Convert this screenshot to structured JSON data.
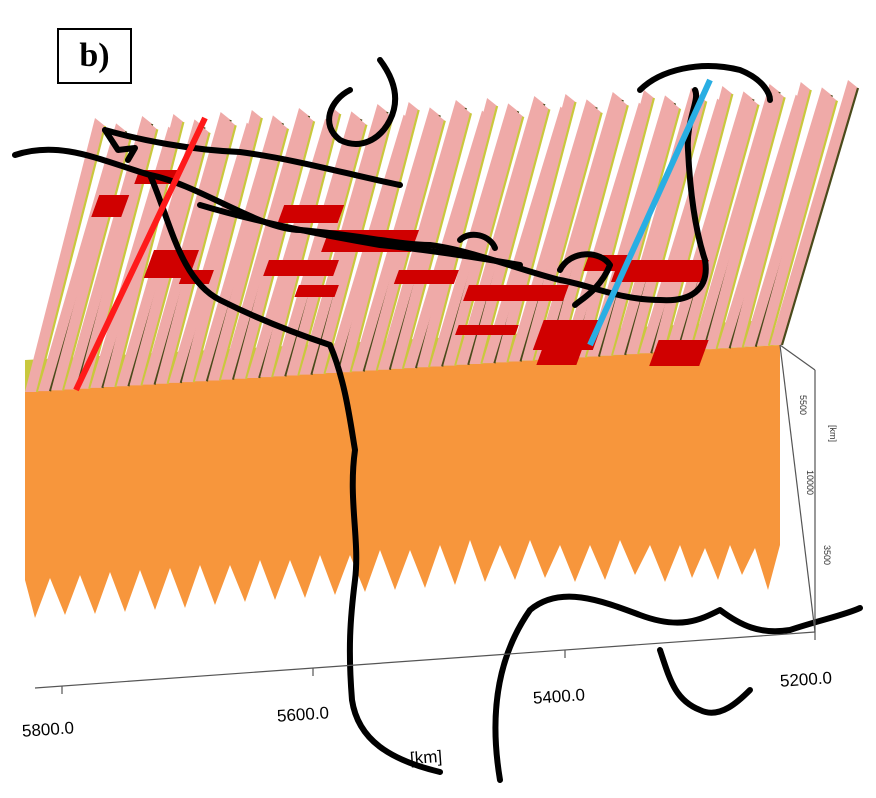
{
  "panel": {
    "label": "b)"
  },
  "x_axis": {
    "ticks": [
      "5800.0",
      "5600.0",
      "5400.0",
      "5200.0"
    ],
    "unit_label": "[km]"
  },
  "z_axis": {
    "ticks": [
      "5500",
      "10000",
      "3500"
    ],
    "unit_label": "[km]"
  },
  "profiles": [
    {
      "color": "#ff1a1a"
    },
    {
      "color": "#29aee3"
    }
  ],
  "colors": {
    "base_layer": "#f7963c",
    "middle_layer": "#c9c83d",
    "upper_layer": "#efaaa8",
    "anomaly": "#d00000",
    "coastline": "#000000"
  }
}
